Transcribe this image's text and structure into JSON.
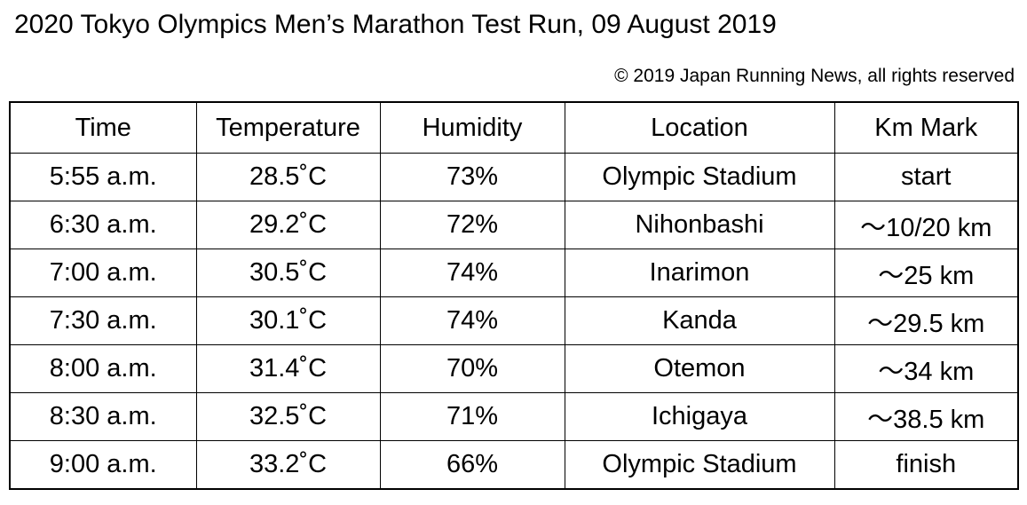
{
  "title": "2020 Tokyo Olympics Men’s Marathon Test Run, 09 August 2019",
  "copyright": "© 2019 Japan Running News, all rights reserved",
  "table": {
    "headers": {
      "time": "Time",
      "temperature": "Temperature",
      "humidity": "Humidity",
      "location": "Location",
      "km_mark": "Km Mark"
    },
    "rows": [
      {
        "time": "5:55 a.m.",
        "temperature": "28.5˚C",
        "humidity": "73%",
        "location": "Olympic Stadium",
        "km_mark": "start"
      },
      {
        "time": "6:30 a.m.",
        "temperature": "29.2˚C",
        "humidity": "72%",
        "location": "Nihonbashi",
        "km_mark": "～10/20 km"
      },
      {
        "time": "7:00 a.m.",
        "temperature": "30.5˚C",
        "humidity": "74%",
        "location": "Inarimon",
        "km_mark": "～25 km"
      },
      {
        "time": "7:30 a.m.",
        "temperature": "30.1˚C",
        "humidity": "74%",
        "location": "Kanda",
        "km_mark": "～29.5 km"
      },
      {
        "time": "8:00 a.m.",
        "temperature": "31.4˚C",
        "humidity": "70%",
        "location": "Otemon",
        "km_mark": "～34 km"
      },
      {
        "time": "8:30 a.m.",
        "temperature": "32.5˚C",
        "humidity": "71%",
        "location": "Ichigaya",
        "km_mark": "～38.5 km"
      },
      {
        "time": "9:00 a.m.",
        "temperature": "33.2˚C",
        "humidity": "66%",
        "location": "Olympic Stadium",
        "km_mark": "finish"
      }
    ]
  }
}
